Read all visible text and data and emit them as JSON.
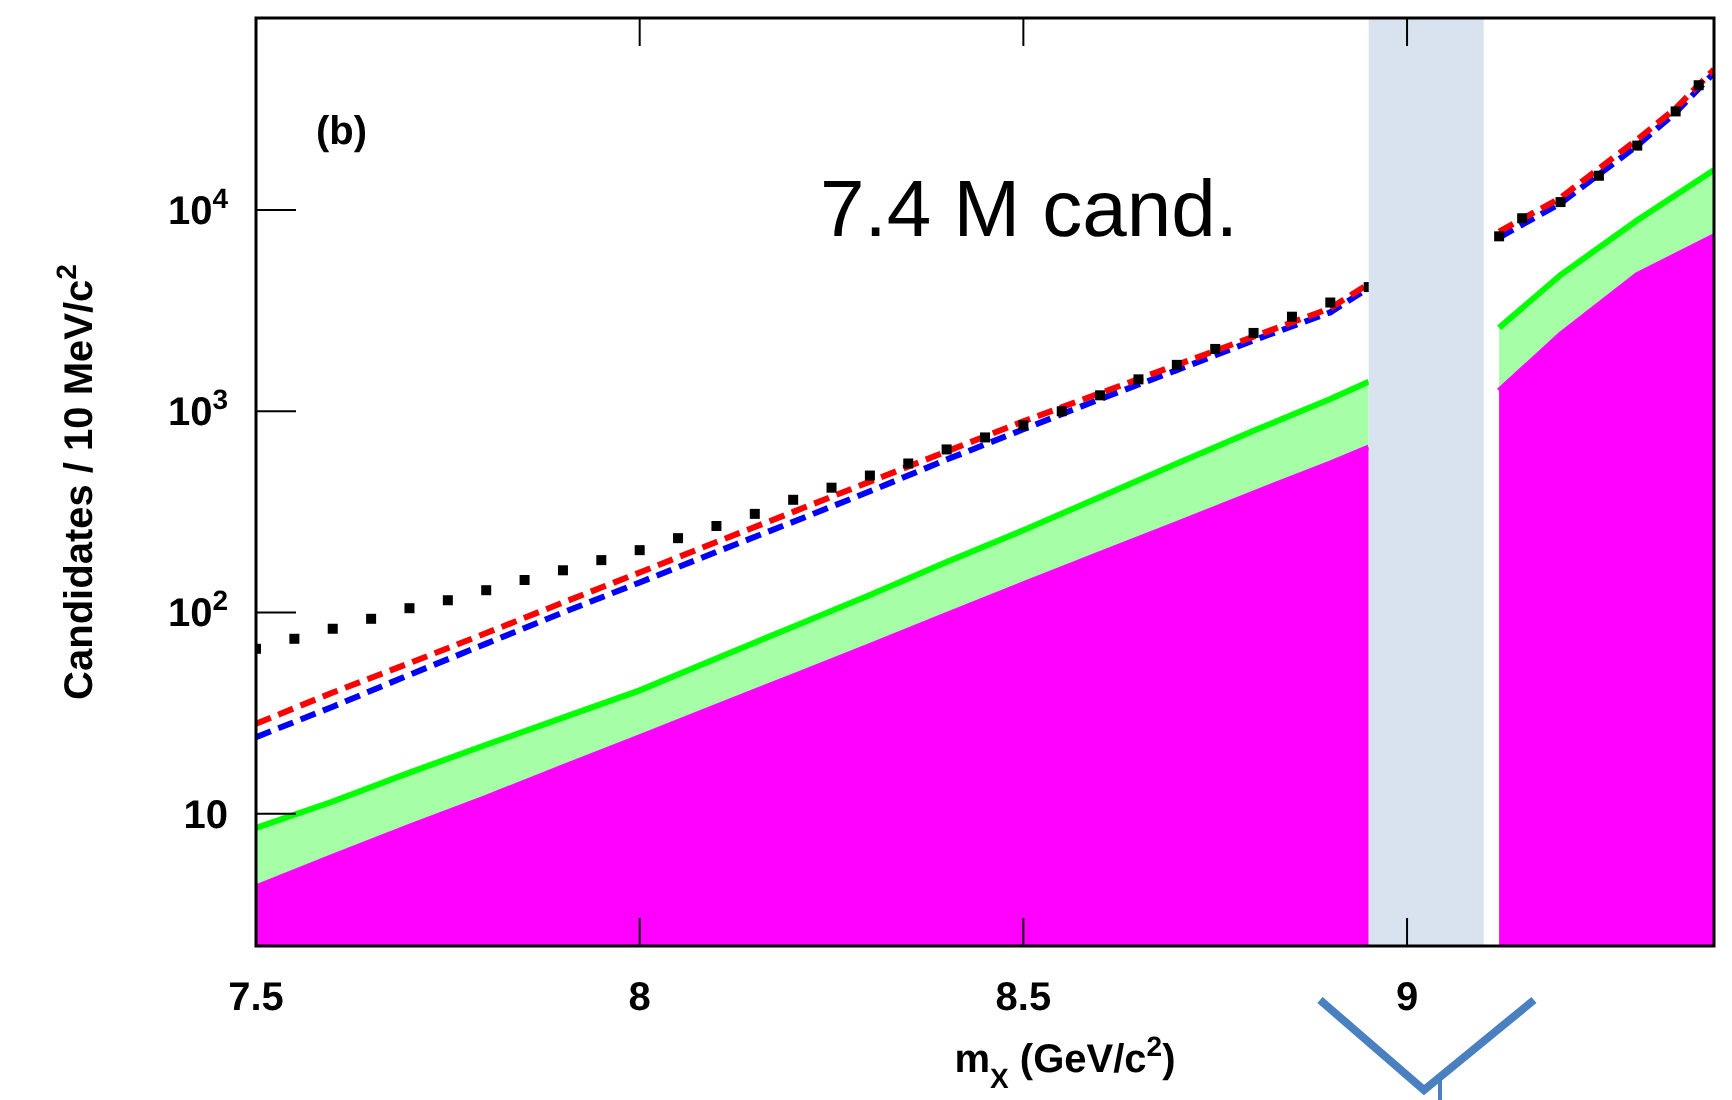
{
  "chart_data": {
    "type": "line",
    "xlabel": "m$_{X}$ (GeV/c$^{2}$)",
    "ylabel": "Candidates / 10 MeV/c$^{2}$",
    "annotations": [
      "(b)",
      "7.4 M cand."
    ],
    "xlim": [
      7.5,
      9.4
    ],
    "xticks": [
      7.5,
      8,
      8.5,
      9
    ],
    "ylim": [
      2.2,
      90000
    ],
    "yticks": [
      10,
      {
        "value": 100,
        "label": "10$^{2}$"
      },
      {
        "value": 1000,
        "label": "10$^{3}$"
      },
      {
        "value": 10000,
        "label": "10$^{4}$"
      }
    ],
    "log": "y",
    "grid": false,
    "bands": [
      {
        "axis": "x",
        "from": 8.95,
        "to": 9.1,
        "color": "#d9e3ef"
      }
    ],
    "series": [
      {
        "type": "area",
        "color": "#00ff00",
        "x": [
          7.5,
          7.6,
          7.7,
          7.8,
          7.9,
          8.0,
          8.1,
          8.2,
          8.3,
          8.4,
          8.5,
          8.6,
          8.7,
          8.8,
          8.9,
          8.95,
          9.0,
          9.12,
          9.2,
          9.3,
          9.4
        ],
        "values": [
          8.5,
          11.5,
          16,
          22,
          30,
          41,
          59,
          85,
          122,
          178,
          256,
          375,
          550,
          800,
          1150,
          1400,
          null,
          2600,
          4750,
          8900,
          15800
        ]
      },
      {
        "type": "area",
        "color": "#ff00ff",
        "x": [
          7.5,
          7.6,
          7.7,
          7.8,
          7.9,
          8.0,
          8.1,
          8.2,
          8.3,
          8.4,
          8.5,
          8.6,
          8.7,
          8.8,
          8.9,
          8.95,
          9.0,
          9.12,
          9.2,
          9.3,
          9.4
        ],
        "values": [
          4.3,
          6.1,
          8.6,
          12,
          17,
          24,
          34,
          48,
          68,
          97,
          138,
          195,
          275,
          390,
          550,
          660,
          null,
          1260,
          2400,
          4750,
          7400
        ]
      },
      {
        "color": "#0000ff",
        "line_style": "dashed",
        "marker": "none",
        "x": [
          7.5,
          7.6,
          7.7,
          7.8,
          7.9,
          8.0,
          8.1,
          8.2,
          8.3,
          8.4,
          8.5,
          8.6,
          8.7,
          8.8,
          8.9,
          8.95,
          9.0,
          9.12,
          9.2,
          9.3,
          9.35,
          9.4
        ],
        "values": [
          24,
          34,
          49,
          70,
          100,
          141,
          200,
          282,
          400,
          575,
          813,
          1150,
          1600,
          2250,
          3100,
          4100,
          null,
          7300,
          10800,
          20900,
          30500,
          48000
        ]
      },
      {
        "color": "#ff0000",
        "line_style": "dashed",
        "marker": "none",
        "x": [
          7.5,
          7.6,
          7.7,
          7.8,
          7.9,
          8.0,
          8.1,
          8.2,
          8.3,
          8.4,
          8.5,
          8.6,
          8.7,
          8.8,
          8.9,
          8.95,
          9.0,
          9.12,
          9.2,
          9.3,
          9.35,
          9.4
        ],
        "values": [
          28,
          40,
          56,
          79,
          112,
          158,
          224,
          316,
          447,
          631,
          891,
          1230,
          1700,
          2350,
          3250,
          4300,
          null,
          7800,
          11500,
          22400,
          32000,
          50000
        ]
      },
      {
        "type": "scatter",
        "color": "#000000",
        "marker": "square",
        "x": [
          7.5,
          7.55,
          7.6,
          7.65,
          7.7,
          7.75,
          7.8,
          7.85,
          7.9,
          7.95,
          8.0,
          8.05,
          8.1,
          8.15,
          8.2,
          8.25,
          8.3,
          8.35,
          8.4,
          8.45,
          8.5,
          8.55,
          8.6,
          8.65,
          8.7,
          8.75,
          8.8,
          8.85,
          8.9,
          8.95,
          9.12,
          9.15,
          9.2,
          9.25,
          9.3,
          9.35,
          9.38
        ],
        "values": [
          66,
          74,
          83,
          93,
          105,
          115,
          129,
          145,
          162,
          182,
          204,
          234,
          269,
          309,
          363,
          417,
          479,
          550,
          646,
          741,
          851,
          1000,
          1200,
          1440,
          1700,
          2040,
          2450,
          2950,
          3470,
          4140,
          7400,
          9100,
          10950,
          14800,
          20900,
          30900,
          41700
        ]
      }
    ]
  }
}
